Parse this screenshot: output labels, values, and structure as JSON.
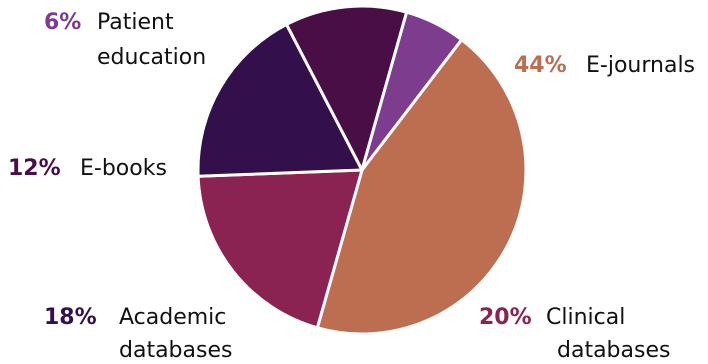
{
  "chart_data": {
    "type": "pie",
    "start_angle_deg": -52.6,
    "direction": "clockwise",
    "slices": [
      {
        "key": "ejournals",
        "pct_label": "44%",
        "lines": [
          "E-journals"
        ],
        "value": 44,
        "color": "#bd6e50"
      },
      {
        "key": "clinical",
        "pct_label": "20%",
        "lines": [
          "Clinical",
          "databases"
        ],
        "value": 20,
        "color": "#8a2352"
      },
      {
        "key": "academic",
        "pct_label": "18%",
        "lines": [
          "Academic",
          "databases"
        ],
        "value": 18,
        "color": "#33104b"
      },
      {
        "key": "ebooks",
        "pct_label": "12%",
        "lines": [
          "E-books"
        ],
        "value": 12,
        "color": "#4a0e46"
      },
      {
        "key": "patient-education",
        "pct_label": "6%",
        "lines": [
          "Patient",
          "education"
        ],
        "value": 6,
        "color": "#7e3c8f"
      }
    ]
  }
}
